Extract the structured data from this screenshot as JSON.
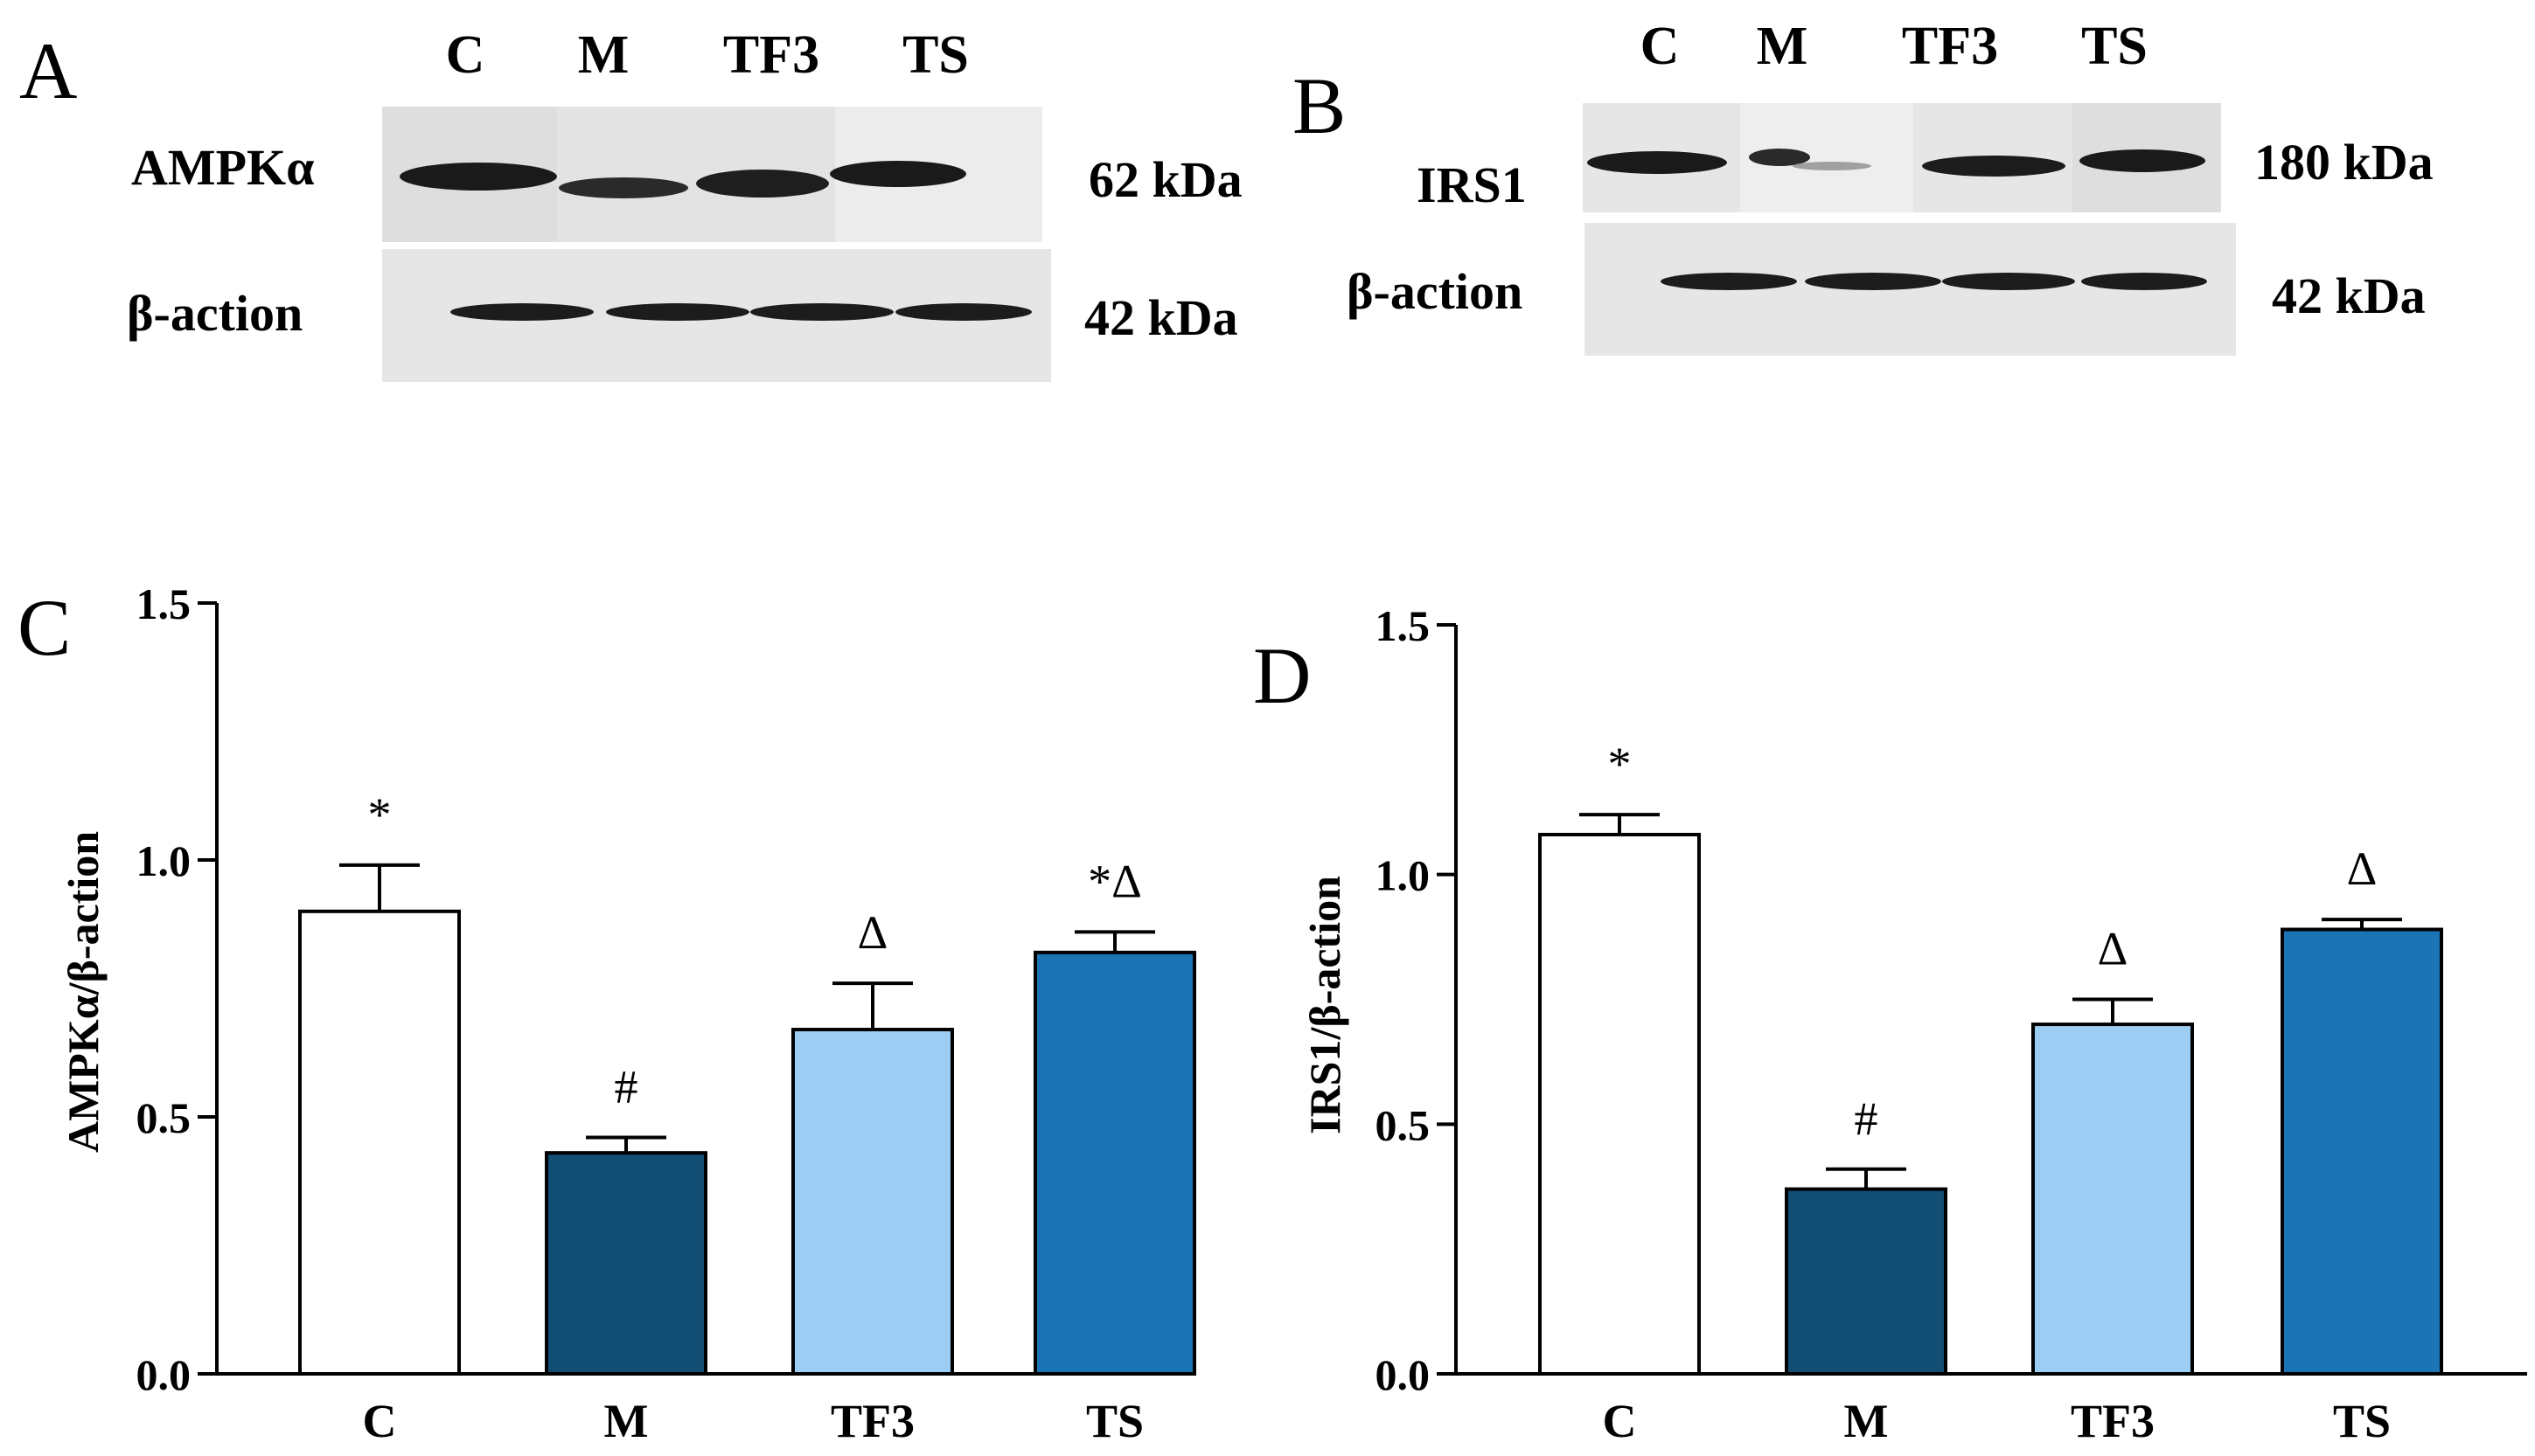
{
  "panels": {
    "A": "A",
    "B": "B",
    "C": "C",
    "D": "D"
  },
  "blot_A": {
    "lanes": [
      "C",
      "M",
      "TF3",
      "TS"
    ],
    "target_label": "AMPKα",
    "target_kda": "62 kDa",
    "loading_label": "β-action",
    "loading_kda": "42 kDa"
  },
  "blot_B": {
    "lanes": [
      "C",
      "M",
      "TF3",
      "TS"
    ],
    "target_label": "IRS1",
    "target_kda": "180 kDa",
    "loading_label": "β-action",
    "loading_kda": "42 kDa"
  },
  "colors": {
    "C": "#ffffff",
    "M": "#124d73",
    "TF3": "#9ccdf2",
    "TS": "#1b75b5"
  },
  "chart_data": [
    {
      "panel": "C",
      "type": "bar",
      "categories": [
        "C",
        "M",
        "TF3",
        "TS"
      ],
      "values": [
        0.9,
        0.43,
        0.67,
        0.82
      ],
      "errors": [
        0.09,
        0.03,
        0.09,
        0.04
      ],
      "annotations": [
        "*",
        "#",
        "Δ",
        "*Δ"
      ],
      "ylabel": "AMPKα/β-action",
      "ylim": [
        0,
        1.5
      ],
      "yticks": [
        "0.0",
        "0.5",
        "1.0",
        "1.5"
      ]
    },
    {
      "panel": "D",
      "type": "bar",
      "categories": [
        "C",
        "M",
        "TF3",
        "TS"
      ],
      "values": [
        1.08,
        0.37,
        0.7,
        0.89
      ],
      "errors": [
        0.04,
        0.04,
        0.05,
        0.02
      ],
      "annotations": [
        "*",
        "#",
        "Δ",
        "Δ"
      ],
      "ylabel": "IRS1/β-action",
      "ylim": [
        0,
        1.5
      ],
      "yticks": [
        "0.0",
        "0.5",
        "1.0",
        "1.5"
      ]
    }
  ]
}
